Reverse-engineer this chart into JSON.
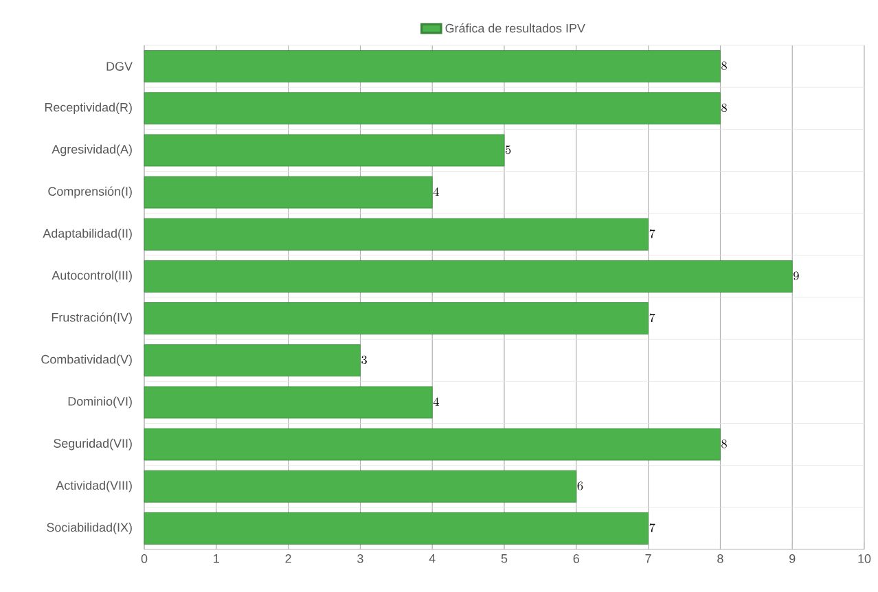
{
  "chart_data": {
    "type": "bar",
    "orientation": "horizontal",
    "categories": [
      "DGV",
      "Receptividad(R)",
      "Agresividad(A)",
      "Comprensión(I)",
      "Adaptabilidad(II)",
      "Autocontrol(III)",
      "Frustración(IV)",
      "Combatividad(V)",
      "Dominio(VI)",
      "Seguridad(VII)",
      "Actividad(VIII)",
      "Sociabilidad(IX)"
    ],
    "series": [
      {
        "name": "Gráfica de resultados IPV",
        "color": "#4cb34c",
        "values": [
          8,
          8,
          5,
          4,
          7,
          9,
          7,
          3,
          4,
          8,
          6,
          7
        ]
      }
    ],
    "xlim": [
      0,
      10
    ],
    "xticks": [
      0,
      1,
      2,
      3,
      4,
      5,
      6,
      7,
      8,
      9,
      10
    ],
    "grid": true,
    "legend": "top",
    "data_labels": true
  }
}
